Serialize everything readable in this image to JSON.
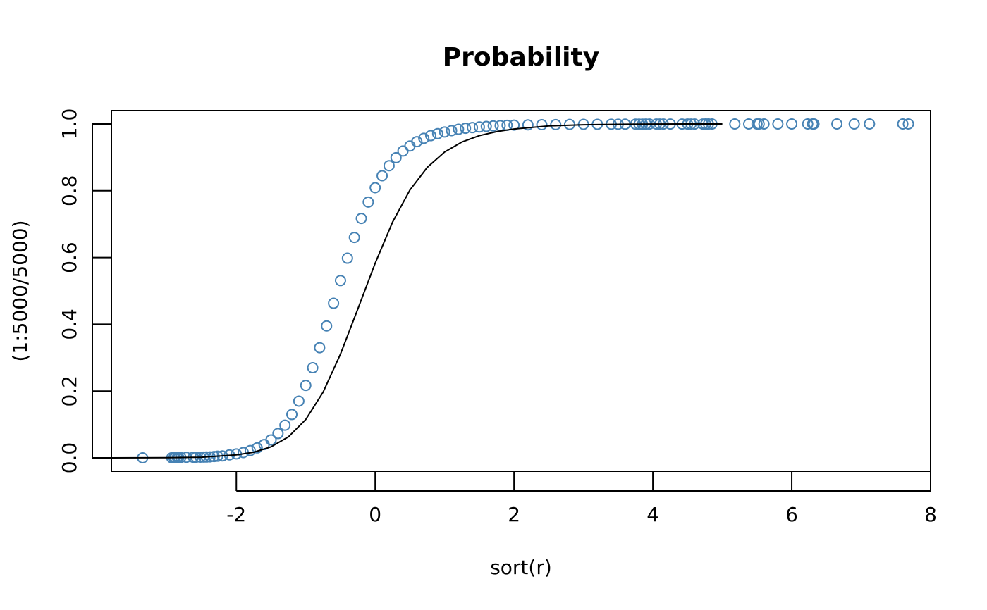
{
  "chart_data": {
    "type": "scatter",
    "title": "Probability",
    "xlabel": "sort(r)",
    "ylabel": "(1:5000/5000)",
    "xlim": [
      -3.8,
      8.0
    ],
    "ylim": [
      -0.04,
      1.04
    ],
    "x_ticks": [
      -2,
      0,
      2,
      4,
      6,
      8
    ],
    "x_tick_labels": [
      "-2",
      "0",
      "2",
      "4",
      "6",
      "8"
    ],
    "y_ticks": [
      0.0,
      0.2,
      0.4,
      0.6,
      0.8,
      1.0
    ],
    "y_tick_labels": [
      "0.0",
      "0.2",
      "0.4",
      "0.6",
      "0.8",
      "1.0"
    ],
    "grid": false,
    "point_color": "#4682B4",
    "point_shape": "open-circle",
    "curve_color": "#000000",
    "series": [
      {
        "kind": "points",
        "x": [
          -3.35,
          -2.93,
          -2.9,
          -2.88,
          -2.85,
          -2.83,
          -2.8,
          -2.72,
          -2.62,
          -2.58,
          -2.52,
          -2.47,
          -2.43,
          -2.38,
          -2.32,
          -2.27,
          -2.2,
          -2.1,
          -2.0,
          -1.9,
          -1.8,
          -1.7,
          -1.6,
          -1.5,
          -1.4,
          -1.3,
          -1.2,
          -1.1,
          -1.0,
          -0.9,
          -0.8,
          -0.7,
          -0.6,
          -0.5,
          -0.4,
          -0.3,
          -0.2,
          -0.1,
          0.0,
          0.1,
          0.2,
          0.3,
          0.4,
          0.5,
          0.6,
          0.7,
          0.8,
          0.9,
          1.0,
          1.1,
          1.2,
          1.3,
          1.4,
          1.5,
          1.6,
          1.7,
          1.8,
          1.9,
          2.0,
          2.2,
          2.4,
          2.6,
          2.8,
          3.0,
          3.2,
          3.4,
          3.5,
          3.6,
          3.75,
          3.8,
          3.85,
          3.9,
          3.95,
          4.05,
          4.1,
          4.15,
          4.25,
          4.42,
          4.5,
          4.55,
          4.6,
          4.72,
          4.76,
          4.8,
          4.85,
          5.18,
          5.38,
          5.5,
          5.53,
          5.6,
          5.8,
          6.0,
          6.23,
          6.3,
          6.32,
          6.65,
          6.9,
          7.12,
          7.6,
          7.68
        ],
        "y": [
          0.0002,
          0.0004,
          0.0006,
          0.0008,
          0.001,
          0.0012,
          0.0014,
          0.0016,
          0.0018,
          0.002,
          0.0022,
          0.0024,
          0.0026,
          0.003,
          0.004,
          0.005,
          0.006,
          0.009,
          0.012,
          0.016,
          0.022,
          0.03,
          0.04,
          0.054,
          0.073,
          0.098,
          0.13,
          0.17,
          0.217,
          0.27,
          0.33,
          0.395,
          0.463,
          0.531,
          0.598,
          0.66,
          0.717,
          0.766,
          0.809,
          0.845,
          0.875,
          0.899,
          0.919,
          0.934,
          0.947,
          0.957,
          0.965,
          0.971,
          0.976,
          0.98,
          0.984,
          0.987,
          0.989,
          0.991,
          0.9925,
          0.994,
          0.995,
          0.996,
          0.9965,
          0.9972,
          0.9978,
          0.9982,
          0.9986,
          0.9988,
          0.999,
          0.9991,
          0.9992,
          0.9993,
          0.9994,
          0.99945,
          0.9995,
          0.99955,
          0.9996,
          0.99962,
          0.99964,
          0.99966,
          0.99968,
          0.9997,
          0.99972,
          0.99974,
          0.99976,
          0.99978,
          0.9998,
          0.99982,
          0.99984,
          0.99986,
          0.99988,
          0.9999,
          0.99991,
          0.99992,
          0.99993,
          0.99994,
          0.99995,
          0.99996,
          0.99997,
          0.99998,
          0.99998,
          0.99999,
          0.99999,
          1.0
        ]
      },
      {
        "kind": "line",
        "x": [
          -3.8,
          -3.0,
          -2.5,
          -2.0,
          -1.75,
          -1.5,
          -1.25,
          -1.0,
          -0.75,
          -0.5,
          -0.25,
          0.0,
          0.25,
          0.5,
          0.75,
          1.0,
          1.25,
          1.5,
          1.75,
          2.0,
          2.5,
          3.0,
          3.5,
          4.0,
          4.5,
          5.0
        ],
        "y": [
          0.0,
          0.0006,
          0.002,
          0.009,
          0.017,
          0.033,
          0.063,
          0.115,
          0.197,
          0.311,
          0.446,
          0.583,
          0.706,
          0.802,
          0.87,
          0.916,
          0.946,
          0.965,
          0.977,
          0.985,
          0.994,
          0.9975,
          0.999,
          0.9996,
          0.9998,
          0.9999
        ]
      }
    ]
  }
}
